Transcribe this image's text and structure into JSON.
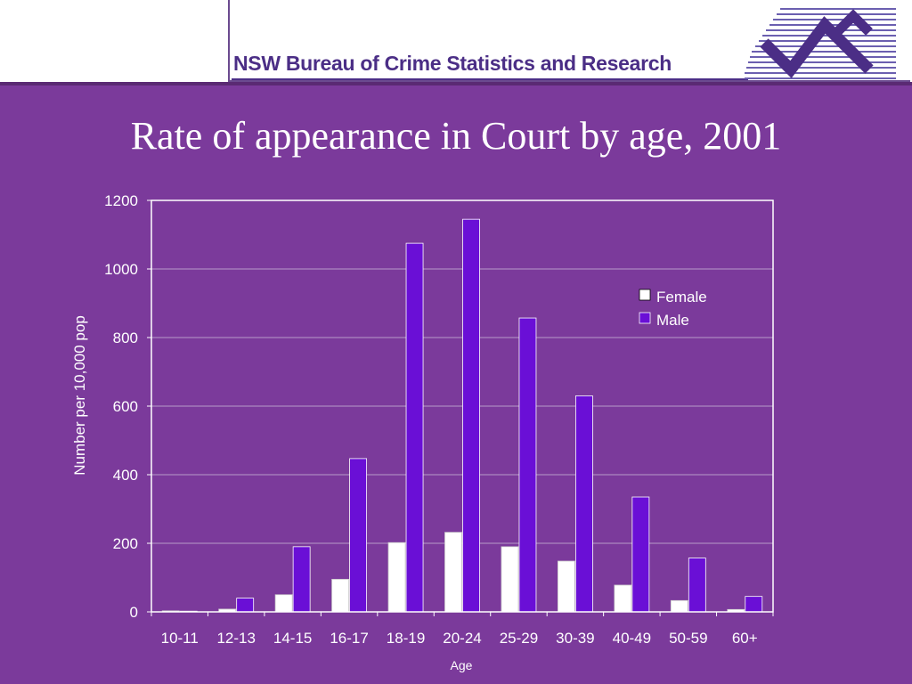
{
  "header": {
    "organization": "NSW Bureau of Crime Statistics and Research"
  },
  "colors": {
    "background": "#7b3a9b",
    "female": "#ffffff",
    "male": "#6a0fd6",
    "plot_border": "#ffffff"
  },
  "chart_data": {
    "type": "bar",
    "title": "Rate of appearance in Court by age, 2001",
    "xlabel": "Age",
    "ylabel": "Number per 10,000 pop",
    "categories": [
      "10-11",
      "12-13",
      "14-15",
      "16-17",
      "18-19",
      "20-24",
      "25-29",
      "30-39",
      "40-49",
      "50-59",
      "60+"
    ],
    "series": [
      {
        "name": "Female",
        "values": [
          3,
          8,
          50,
          95,
          202,
          232,
          190,
          148,
          78,
          33,
          7
        ]
      },
      {
        "name": "Male",
        "values": [
          2,
          40,
          190,
          447,
          1075,
          1145,
          857,
          630,
          335,
          157,
          45
        ]
      }
    ],
    "ylim": [
      0,
      1200
    ],
    "yticks": [
      0,
      200,
      400,
      600,
      800,
      1000,
      1200
    ],
    "grid": true,
    "legend_position": "top-right"
  }
}
